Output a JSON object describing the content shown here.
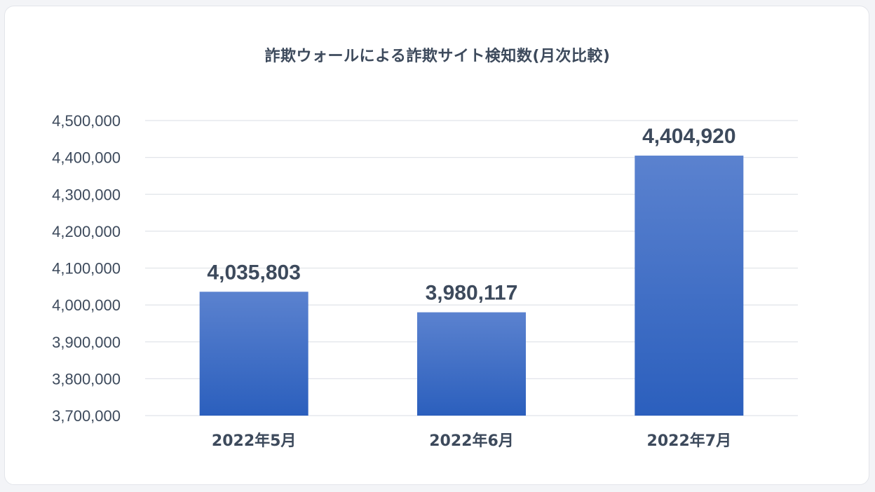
{
  "chart_data": {
    "type": "bar",
    "title": "詐欺ウォールによる詐欺サイト検知数(月次比較)",
    "categories": [
      "2022年5月",
      "2022年6月",
      "2022年7月"
    ],
    "values": [
      4035803,
      3980117,
      4404920
    ],
    "data_labels": [
      "4,035,803",
      "3,980,117",
      "4,404,920"
    ],
    "ylim": [
      3700000,
      4500000
    ],
    "yticks": [
      3700000,
      3800000,
      3900000,
      4000000,
      4100000,
      4200000,
      4300000,
      4400000,
      4500000
    ],
    "ytick_labels": [
      "3,700,000",
      "3,800,000",
      "3,900,000",
      "4,000,000",
      "4,100,000",
      "4,200,000",
      "4,300,000",
      "4,400,000",
      "4,500,000"
    ],
    "grid": true,
    "legend": "none",
    "bar_color_top": "#5b82cf",
    "bar_color_bottom": "#2b5fbd",
    "grid_color": "#e1e4ea",
    "text_color": "#3d4a5c"
  }
}
